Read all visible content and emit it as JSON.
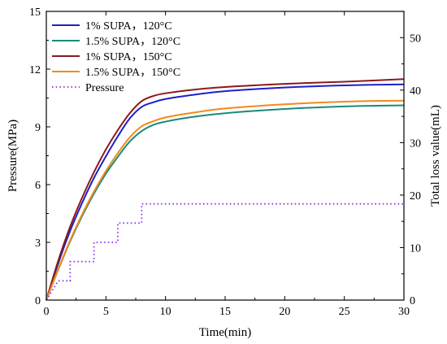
{
  "chart_data": {
    "type": "line",
    "title": "",
    "xlabel": "Time(min)",
    "ylabel_left": "Pressure(MPa)",
    "ylabel_right": "Total loss value(mL)",
    "xlim": [
      0,
      30
    ],
    "ylim_left": [
      0,
      15
    ],
    "ylim_right": [
      0,
      55
    ],
    "x_ticks": [
      "0",
      "5",
      "10",
      "15",
      "20",
      "25",
      "30"
    ],
    "y_left_ticks": [
      "0",
      "3",
      "6",
      "9",
      "12",
      "15"
    ],
    "y_right_ticks": [
      "0",
      "10",
      "20",
      "30",
      "40",
      "50"
    ],
    "grid": false,
    "legend_position": "top-left",
    "series": [
      {
        "name": "1% SUPA，120°C",
        "axis": "right",
        "color": "#1f1fc8",
        "style": "solid",
        "x": [
          0,
          1,
          2,
          3,
          4,
          5,
          6,
          7,
          8,
          9,
          10,
          12,
          15,
          20,
          25,
          30
        ],
        "y": [
          0,
          7,
          13.2,
          18.5,
          23.3,
          27.4,
          31.2,
          34.6,
          36.8,
          37.7,
          38.3,
          39.0,
          39.8,
          40.5,
          40.9,
          41.1
        ]
      },
      {
        "name": "1.5% SUPA，120°C",
        "axis": "right",
        "color": "#1a8a7a",
        "style": "solid",
        "x": [
          0,
          1,
          2,
          3,
          4,
          5,
          6,
          7,
          8,
          9,
          10,
          12,
          15,
          20,
          25,
          30
        ],
        "y": [
          0,
          5.8,
          11.2,
          16.0,
          20.3,
          24.1,
          27.3,
          30.2,
          32.2,
          33.4,
          34.0,
          34.8,
          35.6,
          36.4,
          36.9,
          37.1
        ]
      },
      {
        "name": "1% SUPA，150°C",
        "axis": "right",
        "color": "#8b1a1a",
        "style": "solid",
        "x": [
          0,
          1,
          2,
          3,
          4,
          5,
          6,
          7,
          8,
          9,
          10,
          12,
          15,
          20,
          25,
          30
        ],
        "y": [
          0,
          7.5,
          14.0,
          19.5,
          24.4,
          28.7,
          32.4,
          35.6,
          37.9,
          38.9,
          39.4,
          40.0,
          40.6,
          41.2,
          41.6,
          42.1
        ]
      },
      {
        "name": "1.5% SUPA，150°C",
        "axis": "right",
        "color": "#f28a1c",
        "style": "solid",
        "x": [
          0,
          1,
          2,
          3,
          4,
          5,
          6,
          7,
          8,
          9,
          10,
          12,
          15,
          20,
          25,
          30
        ],
        "y": [
          0,
          5.9,
          11.4,
          16.3,
          20.7,
          24.6,
          28.0,
          31.0,
          33.1,
          34.1,
          34.8,
          35.6,
          36.5,
          37.3,
          37.8,
          38.0
        ]
      },
      {
        "name": "Pressure",
        "axis": "left",
        "color": "#8a2be2",
        "style": "dotted",
        "step": true,
        "x": [
          0,
          1,
          1,
          2,
          2,
          4,
          4,
          6,
          6,
          8,
          8,
          30
        ],
        "y": [
          0,
          1,
          1,
          1,
          2,
          2,
          3,
          3,
          4,
          4,
          5,
          5
        ]
      }
    ]
  }
}
